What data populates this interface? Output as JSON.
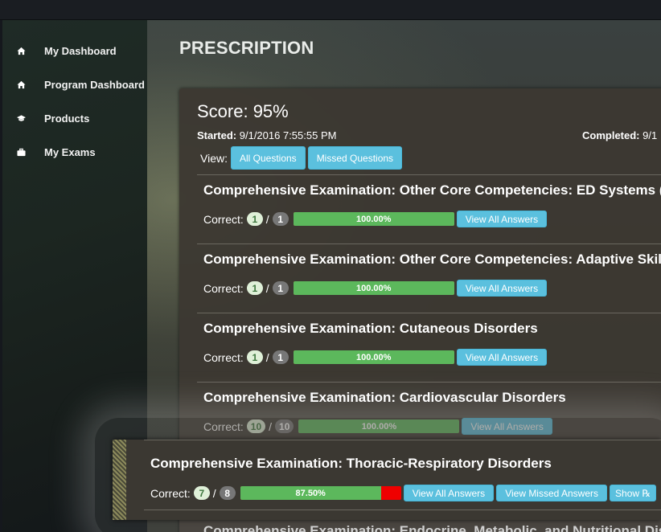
{
  "sidebar": {
    "items": [
      {
        "label": "My Dashboard",
        "icon": "home-icon"
      },
      {
        "label": "Program Dashboard",
        "icon": "home-icon"
      },
      {
        "label": "Products",
        "icon": "graduation-cap-icon"
      },
      {
        "label": "My Exams",
        "icon": "briefcase-icon"
      }
    ]
  },
  "page": {
    "title": "PRESCRIPTION"
  },
  "summary": {
    "score": "Score: 95%",
    "started_label": "Started:",
    "started_value": "9/1/2016 7:55:55 PM",
    "completed_label": "Completed:",
    "completed_value": "9/1"
  },
  "view": {
    "label": "View:",
    "all_questions": "All Questions",
    "missed_questions": "Missed Questions"
  },
  "correct_label": "Correct:",
  "sections": [
    {
      "title": "Comprehensive Examination: Other Core Competencies: ED Systems (in",
      "correct": "1",
      "total": "1",
      "percent": "100.00%",
      "fraction": 1.0,
      "view_all": "View All Answers"
    },
    {
      "title": "Comprehensive Examination: Other Core Competencies: Adaptive Skills",
      "correct": "1",
      "total": "1",
      "percent": "100.00%",
      "fraction": 1.0,
      "view_all": "View All Answers"
    },
    {
      "title": "Comprehensive Examination: Cutaneous Disorders",
      "correct": "1",
      "total": "1",
      "percent": "100.00%",
      "fraction": 1.0,
      "view_all": "View All Answers"
    },
    {
      "title": "Comprehensive Examination: Cardiovascular Disorders",
      "correct": "10",
      "total": "10",
      "percent": "100.00%",
      "fraction": 1.0,
      "view_all": "View All Answers"
    }
  ],
  "focused": {
    "title": "Comprehensive Examination: Thoracic-Respiratory Disorders",
    "correct": "7",
    "total": "8",
    "percent": "87.50%",
    "fraction": 0.875,
    "view_all": "View All Answers",
    "view_missed": "View Missed Answers",
    "show_rx": "Show ℞"
  },
  "next_section_title": "Comprehensive Examination: Endocrine, Metabolic, and Nutritional Dis",
  "colors": {
    "info": "#5bc0de",
    "success": "#5cb85c",
    "danger": "#ef0000"
  }
}
